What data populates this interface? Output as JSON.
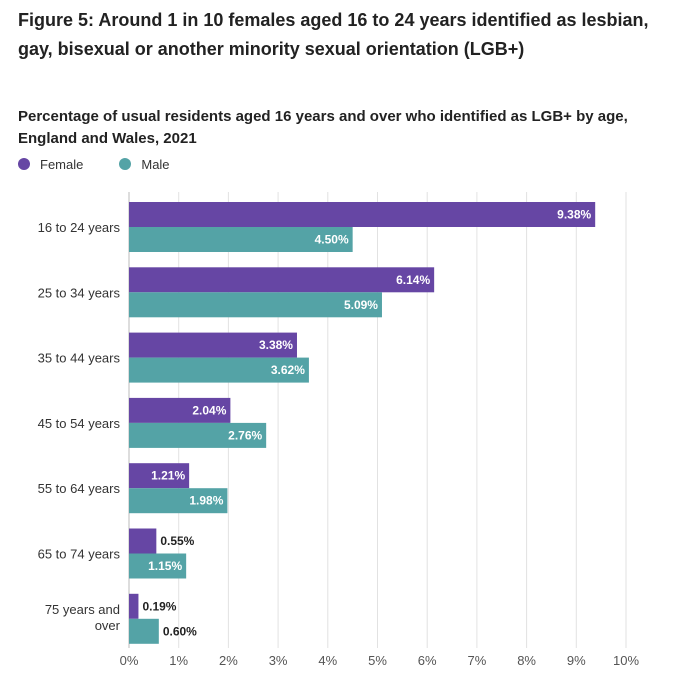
{
  "chart_data": {
    "type": "bar",
    "orientation": "horizontal",
    "title": "Figure 5: Around 1 in 10 females aged 16 to 24 years identified as lesbian, gay, bisexual or another minority sexual orientation (LGB+)",
    "subtitle": "Percentage of usual residents aged 16 years and over who identified as LGB+ by age, England and Wales, 2021",
    "categories": [
      "16 to 24 years",
      "25 to 34 years",
      "35 to 44 years",
      "45 to 54 years",
      "55 to 64 years",
      "65 to 74 years",
      "75 years and over"
    ],
    "series": [
      {
        "name": "Female",
        "color": "#6646a4",
        "values": [
          9.38,
          6.14,
          3.38,
          2.04,
          1.21,
          0.55,
          0.19
        ],
        "labels": [
          "9.38%",
          "6.14%",
          "3.38%",
          "2.04%",
          "1.21%",
          "0.55%",
          "0.19%"
        ]
      },
      {
        "name": "Male",
        "color": "#54a3a6",
        "values": [
          4.5,
          5.09,
          3.62,
          2.76,
          1.98,
          1.15,
          0.6
        ],
        "labels": [
          "4.50%",
          "5.09%",
          "3.62%",
          "2.76%",
          "1.98%",
          "1.15%",
          "0.60%"
        ]
      }
    ],
    "xlim": [
      0,
      10
    ],
    "xticks": [
      0,
      1,
      2,
      3,
      4,
      5,
      6,
      7,
      8,
      9,
      10
    ],
    "xtick_labels": [
      "0%",
      "1%",
      "2%",
      "3%",
      "4%",
      "5%",
      "6%",
      "7%",
      "8%",
      "9%",
      "10%"
    ],
    "grid": true,
    "legend_position": "top-left"
  }
}
